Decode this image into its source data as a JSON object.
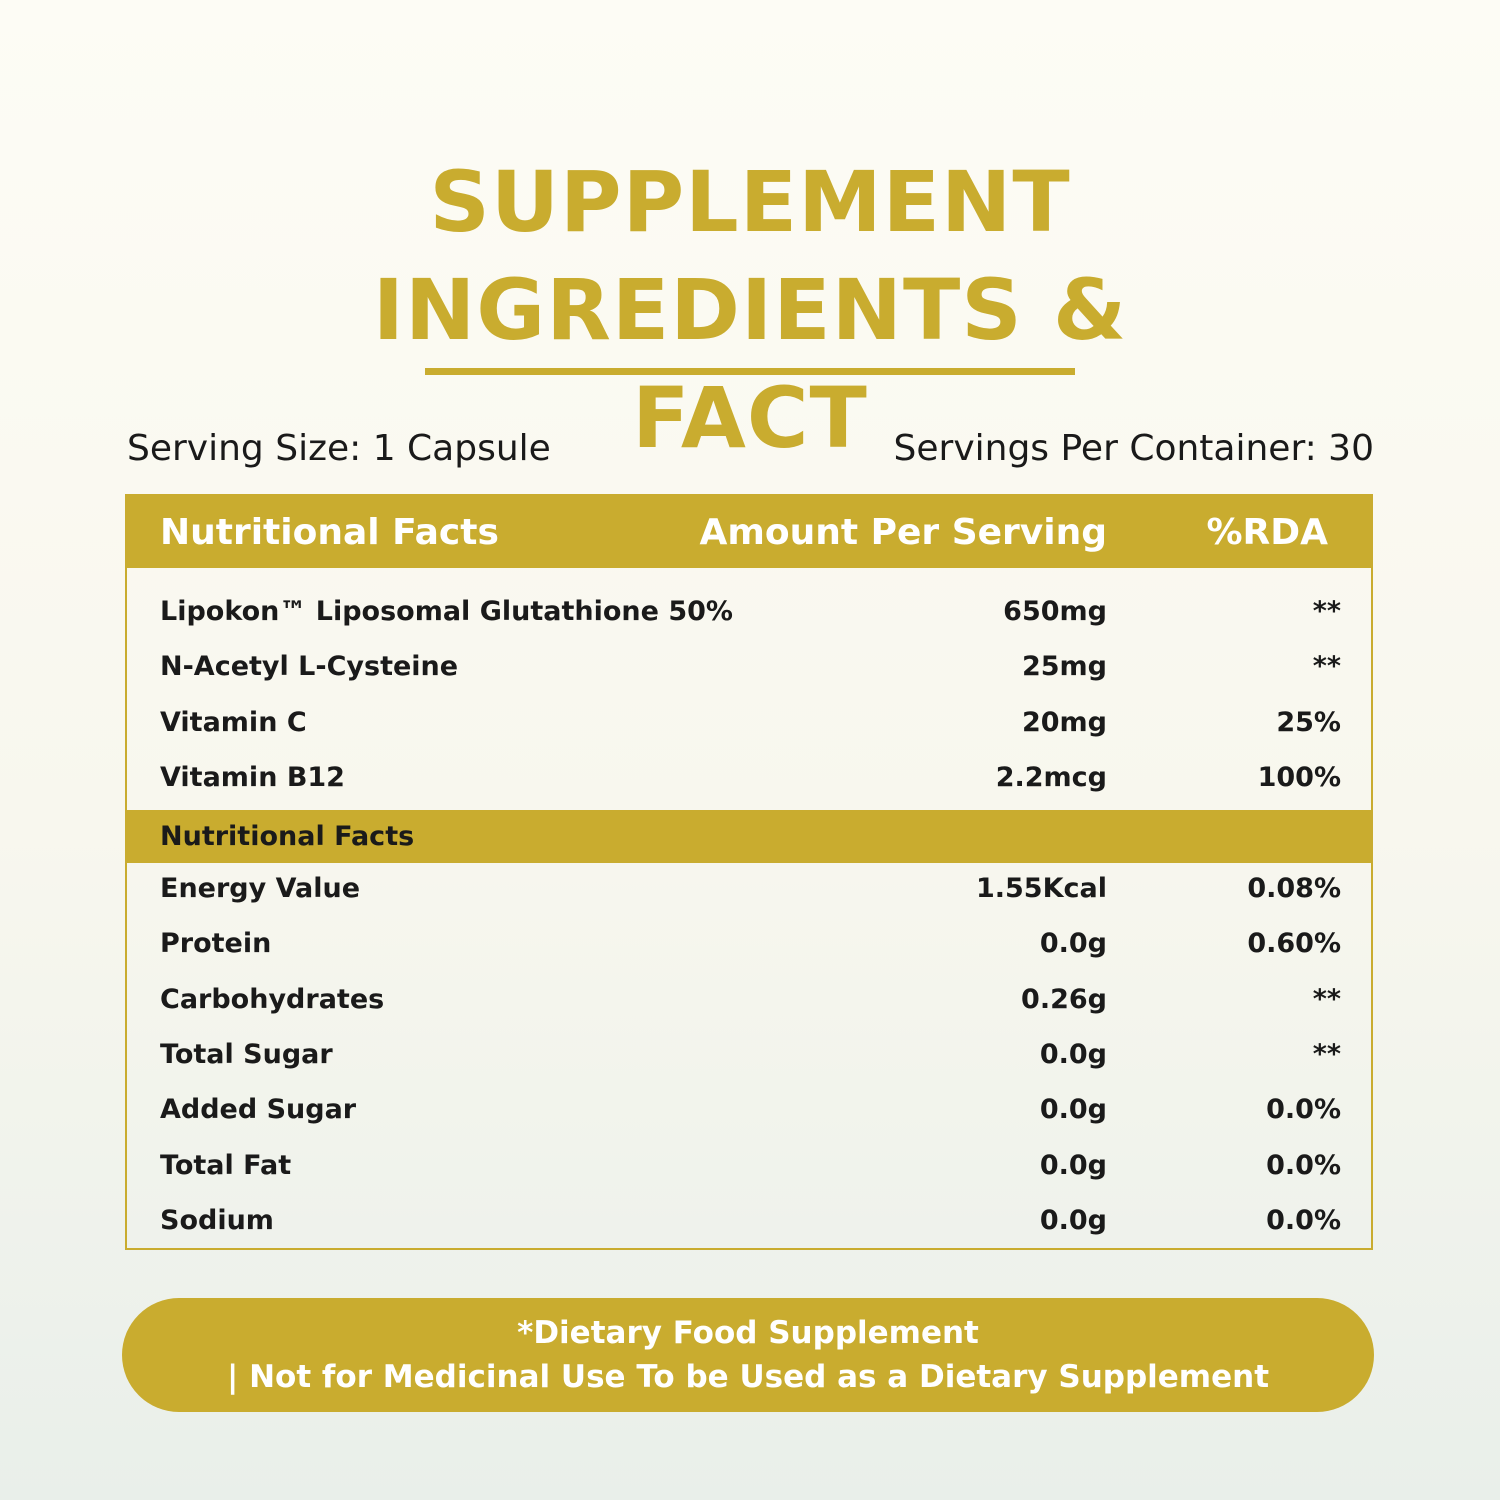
{
  "header": {
    "title": "SUPPLEMENT INGREDIENTS & FACT"
  },
  "serving_size": "Serving Size: 1 Capsule",
  "servings_per_container": "Servings Per Container: 30",
  "table": {
    "columns": [
      "Nutritional Facts",
      "Amount Per Serving",
      "%RDA"
    ],
    "rows": [
      [
        "Lipokon™ Liposomal Glutathione 50%",
        "650mg",
        "**"
      ],
      [
        "N-Acetyl L-Cysteine",
        "25mg",
        "**"
      ],
      [
        "Vitamin C",
        "20mg",
        "25%"
      ],
      [
        "Vitamin B12",
        "2.2mcg",
        "100%"
      ]
    ],
    "section": "Nutritional Facts",
    "rows2": [
      [
        "Energy Value",
        "1.55Kcal",
        "0.08%"
      ],
      [
        "Protein",
        "0.0g",
        "0.60%"
      ],
      [
        "Carbohydrates",
        "0.26g",
        "**"
      ],
      [
        "Total Sugar",
        "0.0g",
        "**"
      ],
      [
        "Added Sugar",
        "0.0g",
        "0.0%"
      ],
      [
        "Total Fat",
        "0.0g",
        "0.0%"
      ],
      [
        "Sodium",
        "0.0g",
        "0.0%"
      ]
    ]
  },
  "footer": {
    "line1": "*Dietary Food Supplement",
    "line2": "| Not for Medicinal Use To be Used as a Dietary Supplement"
  }
}
